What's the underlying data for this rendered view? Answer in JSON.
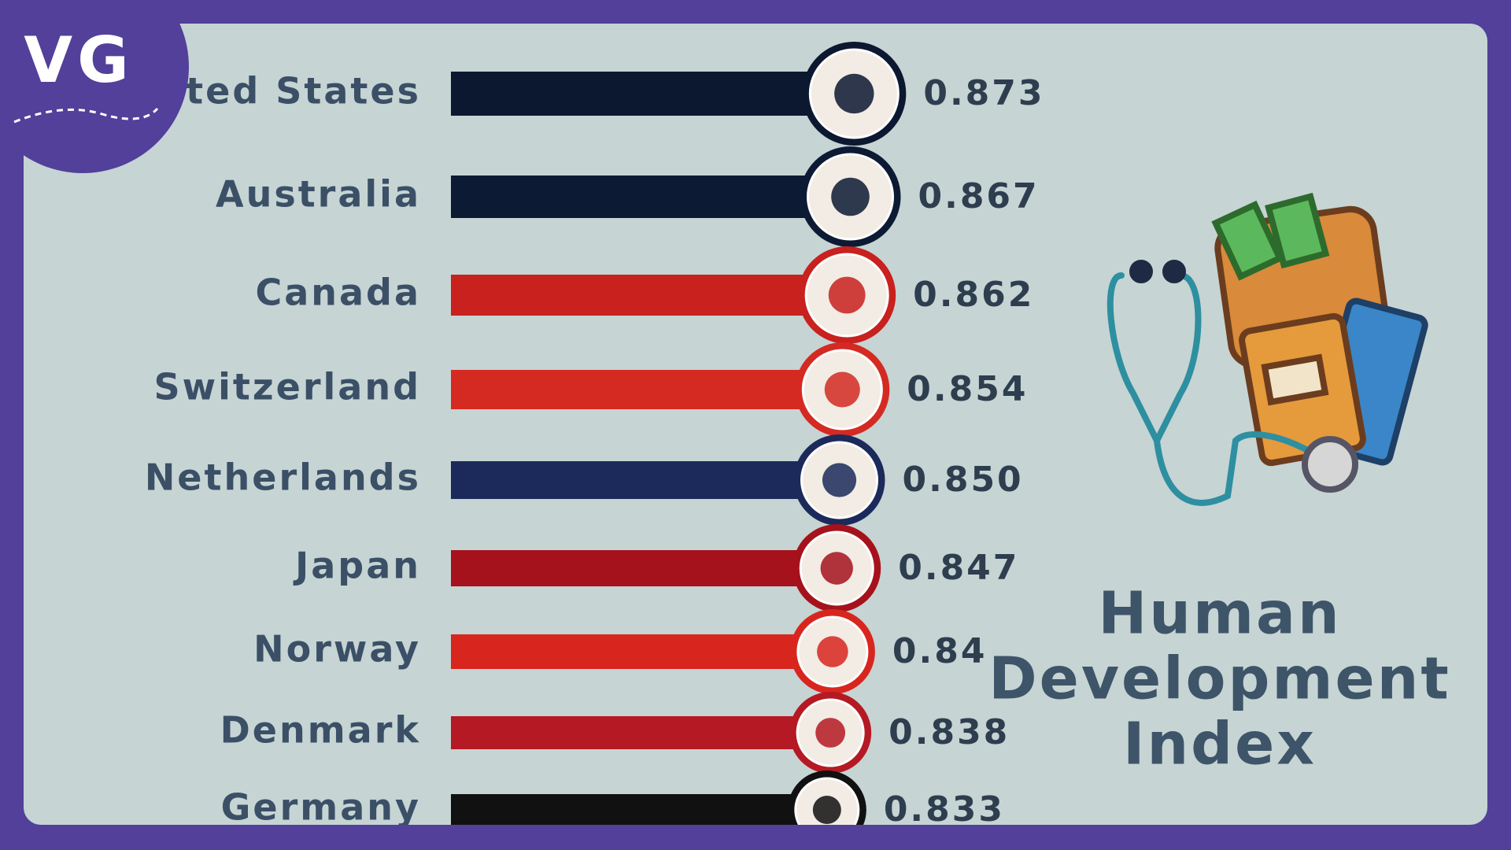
{
  "logo": "VG",
  "chart_data": {
    "type": "bar",
    "orientation": "horizontal",
    "title_lines": [
      "Human",
      "Development",
      "Index"
    ],
    "categories": [
      "United States",
      "Australia",
      "Canada",
      "Switzerland",
      "Netherlands",
      "Japan",
      "Norway",
      "Denmark",
      "Germany"
    ],
    "values": [
      0.873,
      0.867,
      0.862,
      0.854,
      0.85,
      0.847,
      0.84,
      0.838,
      0.833
    ],
    "value_labels": [
      "0.873",
      "0.867",
      "0.862",
      "0.854",
      "0.850",
      "0.847",
      "0.84",
      "0.838",
      "0.833"
    ],
    "colors": [
      "#0c1830",
      "#0d1a33",
      "#c8211e",
      "#d42a22",
      "#1b2a5a",
      "#a5121c",
      "#d8261e",
      "#b51923",
      "#111111"
    ]
  }
}
